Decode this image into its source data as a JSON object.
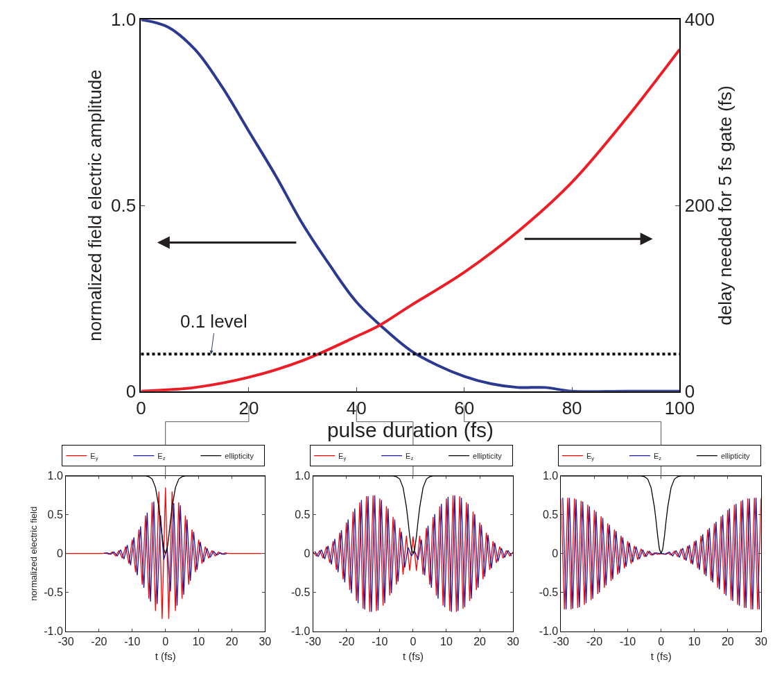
{
  "chart_data": [
    {
      "type": "line",
      "xlabel": "pulse duration (fs)",
      "ylabel": "normalized field electric amplitude",
      "y2label": "delay needed for 5 fs gate (fs)",
      "xlim": [
        0,
        100
      ],
      "xticks": [
        0,
        20,
        40,
        60,
        80,
        100
      ],
      "ylim": [
        0,
        1
      ],
      "yticks": [
        0,
        {
          "value": 0.5,
          "label": "0.5"
        },
        {
          "value": 1,
          "label": "1.0"
        }
      ],
      "y2lim": [
        0,
        400
      ],
      "y2ticks": [
        0,
        200,
        400
      ],
      "legend": false,
      "ref_lines": [
        {
          "axis": "y",
          "value": 0.1,
          "label": "0.1 level",
          "color": "#000000",
          "line_style": "dotted"
        }
      ],
      "series": [
        {
          "color": "#2b3990",
          "x": [
            0,
            5,
            10,
            15,
            20,
            25,
            30,
            35,
            40,
            45,
            50,
            55,
            60,
            65,
            70,
            75,
            80,
            90,
            100
          ],
          "values": [
            1,
            0.98,
            0.92,
            0.82,
            0.7,
            0.58,
            0.45,
            0.34,
            0.24,
            0.17,
            0.11,
            0.07,
            0.04,
            0.02,
            0.01,
            0.01,
            0,
            0,
            0
          ]
        },
        {
          "color": "#ee1c25",
          "axis": "y2",
          "x": [
            0,
            10,
            20,
            30,
            40,
            44,
            50,
            60,
            70,
            80,
            90,
            100
          ],
          "values": [
            0,
            4,
            15,
            33,
            59,
            70,
            92,
            128,
            172,
            225,
            293,
            368
          ]
        }
      ]
    },
    {
      "type": "line",
      "xlabel": "t (fs)",
      "ylabel": "normalized electric field",
      "xlim": [
        -30,
        30
      ],
      "xticks": [
        -30,
        -20,
        -10,
        0,
        10,
        20,
        30
      ],
      "ylim": [
        -1,
        1
      ],
      "yticks": [
        {
          "value": -1,
          "label": "-1.0"
        },
        -0.5,
        0,
        0.5,
        {
          "value": 1,
          "label": "1.0"
        }
      ],
      "legend": "top right",
      "series": [
        {
          "name": "E$_{y}$",
          "color": "#ff0000",
          "x": [
            -30,
            -29,
            -28,
            -27,
            -26,
            -25,
            -24,
            -23,
            -22,
            -21,
            -20,
            -19,
            -18,
            -17,
            -16,
            -15,
            -14,
            -13,
            -12,
            -11,
            -10,
            -9,
            -8,
            -7,
            -6,
            -5,
            -4,
            -3,
            -2,
            -1,
            0,
            1,
            2,
            3,
            4,
            5,
            6,
            7,
            8,
            9,
            10,
            11,
            12,
            13,
            14,
            15,
            16,
            17,
            18,
            19,
            20,
            21,
            22,
            23,
            24,
            25,
            26,
            27,
            28,
            29
          ],
          "values": [
            0,
            0,
            0,
            0,
            0,
            0,
            0,
            0,
            0,
            0,
            0,
            0,
            0.01,
            -0.01,
            0.02,
            -0.03,
            0.04,
            -0.06,
            0.09,
            -0.13,
            0.18,
            -0.24,
            0.31,
            -0.4,
            0.49,
            -0.58,
            0.66,
            -0.74,
            0.8,
            -0.84,
            0.85,
            -0.84,
            0.8,
            -0.74,
            0.66,
            -0.58,
            0.49,
            -0.4,
            0.31,
            -0.24,
            0.18,
            -0.13,
            0.09,
            -0.06,
            0.04,
            -0.03,
            0.02,
            -0.01,
            0.01,
            0,
            0,
            0,
            0,
            0,
            0,
            0,
            0,
            0,
            0,
            0
          ]
        },
        {
          "name": "E$_{z}$",
          "color": "#1c1c9c",
          "x": [
            -18.5,
            -17.5,
            -16.5,
            -15.5,
            -14.5,
            -13.5,
            -12.5,
            -11.5,
            -10.5,
            -9.5,
            -8.5,
            -7.5,
            -6.5,
            -5.5,
            -4.5,
            -3.5,
            -2.5,
            -1.5,
            -0.5,
            0.5,
            1.5,
            2.5,
            3.5,
            4.5,
            5.5,
            6.5,
            7.5,
            8.5,
            9.5,
            10.5,
            11.5,
            12.5,
            13.5,
            14.5,
            15.5,
            16.5,
            17.5,
            18.5
          ],
          "values": [
            0,
            0.01,
            -0.01,
            0.02,
            -0.03,
            0.05,
            -0.07,
            0.11,
            -0.15,
            0.21,
            -0.28,
            0.35,
            -0.44,
            0.53,
            -0.62,
            0.67,
            -0.65,
            0.49,
            -0.08,
            0.08,
            -0.49,
            0.65,
            -0.67,
            0.62,
            -0.53,
            0.44,
            -0.35,
            0.28,
            -0.21,
            0.15,
            -0.11,
            0.07,
            -0.05,
            0.03,
            -0.02,
            0.01,
            -0.01,
            0
          ]
        },
        {
          "name": "ellipticity",
          "color": "#000000",
          "x": [
            -30,
            -6,
            -5,
            -4,
            -3,
            -2,
            -1.5,
            -1,
            -0.5,
            0,
            0.5,
            1,
            1.5,
            2,
            3,
            4,
            5,
            6,
            30
          ],
          "values": [
            1,
            1,
            0.99,
            0.96,
            0.85,
            0.6,
            0.42,
            0.22,
            0.06,
            0,
            0.06,
            0.22,
            0.42,
            0.6,
            0.85,
            0.96,
            0.99,
            1,
            1
          ]
        }
      ]
    },
    {
      "type": "line",
      "xlabel": "t (fs)",
      "xlim": [
        -30,
        30
      ],
      "xticks": [
        -30,
        -20,
        -10,
        0,
        10,
        20,
        30
      ],
      "ylim": [
        -1,
        1
      ],
      "yticks": [
        {
          "value": -1,
          "label": "-1.0"
        },
        -0.5,
        0,
        0.5,
        {
          "value": 1,
          "label": "1.0"
        }
      ],
      "legend": "top right",
      "series": [
        {
          "name": "E$_{y}$",
          "color": "#ff0000",
          "x": [
            -30,
            -29,
            -28,
            -27,
            -26,
            -25,
            -24,
            -23,
            -22,
            -21,
            -20,
            -19,
            -18,
            -17,
            -16,
            -15,
            -14,
            -13,
            -12,
            -11,
            -10,
            -9,
            -8,
            -7,
            -6,
            -5,
            -4,
            -3,
            -2,
            -1,
            0,
            1,
            2,
            3,
            4,
            5,
            6,
            7,
            8,
            9,
            10,
            11,
            12,
            13,
            14,
            15,
            16,
            17,
            18,
            19,
            20,
            21,
            22,
            23,
            24,
            25,
            26,
            27,
            28,
            29,
            30
          ],
          "values": [
            0.02,
            -0.03,
            0.04,
            -0.06,
            0.09,
            -0.12,
            0.16,
            -0.21,
            0.27,
            -0.33,
            0.4,
            -0.47,
            0.54,
            -0.61,
            0.66,
            -0.71,
            0.74,
            -0.75,
            0.75,
            -0.74,
            0.71,
            -0.67,
            0.61,
            -0.54,
            0.47,
            -0.4,
            0.33,
            -0.27,
            0.23,
            -0.22,
            0.22,
            -0.22,
            0.23,
            -0.27,
            0.33,
            -0.4,
            0.47,
            -0.54,
            0.61,
            -0.67,
            0.71,
            -0.74,
            0.75,
            -0.75,
            0.74,
            -0.71,
            0.66,
            -0.61,
            0.54,
            -0.47,
            0.4,
            -0.33,
            0.27,
            -0.21,
            0.16,
            -0.12,
            0.09,
            -0.06,
            0.04,
            -0.03,
            0.02
          ]
        },
        {
          "name": "E$_{z}$",
          "color": "#1c1c9c",
          "x": [
            -29.5,
            -28.5,
            -27.5,
            -26.5,
            -25.5,
            -24.5,
            -23.5,
            -22.5,
            -21.5,
            -20.5,
            -19.5,
            -18.5,
            -17.5,
            -16.5,
            -15.5,
            -14.5,
            -13.5,
            -12.5,
            -11.5,
            -10.5,
            -9.5,
            -8.5,
            -7.5,
            -6.5,
            -5.5,
            -4.5,
            -3.5,
            -2.5,
            -1.5,
            -0.5,
            0.5,
            1.5,
            2.5,
            3.5,
            4.5,
            5.5,
            6.5,
            7.5,
            8.5,
            9.5,
            10.5,
            11.5,
            12.5,
            13.5,
            14.5,
            15.5,
            16.5,
            17.5,
            18.5,
            19.5,
            20.5,
            21.5,
            22.5,
            23.5,
            24.5,
            25.5,
            26.5,
            27.5,
            28.5,
            29.5
          ],
          "values": [
            0.03,
            -0.04,
            0.05,
            -0.07,
            0.1,
            -0.14,
            0.19,
            -0.24,
            0.3,
            -0.37,
            0.44,
            -0.51,
            0.58,
            -0.64,
            0.69,
            -0.72,
            0.74,
            -0.75,
            0.75,
            -0.73,
            0.69,
            -0.64,
            0.58,
            -0.51,
            0.44,
            -0.36,
            0.28,
            -0.18,
            0.08,
            -0.03,
            0.03,
            -0.08,
            0.18,
            -0.28,
            0.36,
            -0.44,
            0.51,
            -0.58,
            0.64,
            -0.69,
            0.73,
            -0.75,
            0.75,
            -0.74,
            0.72,
            -0.69,
            0.64,
            -0.58,
            0.51,
            -0.44,
            0.37,
            -0.3,
            0.24,
            -0.19,
            0.14,
            -0.1,
            0.07,
            -0.05,
            0.04,
            -0.03
          ]
        },
        {
          "name": "ellipticity",
          "color": "#000000",
          "x": [
            -30,
            -6,
            -5,
            -4,
            -3,
            -2,
            -1.5,
            -1,
            -0.5,
            0,
            0.5,
            1,
            1.5,
            2,
            3,
            4,
            5,
            6,
            30
          ],
          "values": [
            1,
            1,
            0.99,
            0.96,
            0.85,
            0.6,
            0.42,
            0.22,
            0.06,
            0,
            0.06,
            0.22,
            0.42,
            0.6,
            0.85,
            0.96,
            0.99,
            1,
            1
          ]
        }
      ]
    },
    {
      "type": "line",
      "xlabel": "t (fs)",
      "xlim": [
        -30,
        30
      ],
      "xticks": [
        -30,
        -20,
        -10,
        0,
        10,
        20,
        30
      ],
      "ylim": [
        -1,
        1
      ],
      "yticks": [
        {
          "value": -1,
          "label": "-1.0"
        },
        -0.5,
        0,
        0.5,
        {
          "value": 1,
          "label": "1.0"
        }
      ],
      "legend": "top right",
      "series": [
        {
          "name": "E$_{y}$",
          "color": "#ff0000",
          "x": [
            -30,
            -29,
            -28,
            -27,
            -26,
            -25,
            -24,
            -23,
            -22,
            -21,
            -20,
            -19,
            -18,
            -17,
            -16,
            -15,
            -14,
            -13,
            -12,
            -11,
            -10,
            -9,
            -8,
            -7,
            -6,
            -5,
            -4,
            -3,
            -2,
            -1,
            0,
            1,
            2,
            3,
            4,
            5,
            6,
            7,
            8,
            9,
            10,
            11,
            12,
            13,
            14,
            15,
            16,
            17,
            18,
            19,
            20,
            21,
            22,
            23,
            24,
            25,
            26,
            27,
            28,
            29,
            30
          ],
          "values": [
            0.71,
            -0.72,
            0.72,
            -0.72,
            0.71,
            -0.7,
            0.68,
            -0.66,
            0.63,
            -0.6,
            0.56,
            -0.52,
            0.48,
            -0.44,
            0.39,
            -0.35,
            0.31,
            -0.27,
            0.23,
            -0.19,
            0.16,
            -0.13,
            0.1,
            -0.08,
            0.06,
            -0.04,
            0.03,
            -0.02,
            0.01,
            -0.01,
            0,
            -0.01,
            0.01,
            -0.02,
            0.03,
            -0.04,
            0.06,
            -0.08,
            0.1,
            -0.13,
            0.16,
            -0.19,
            0.23,
            -0.27,
            0.31,
            -0.35,
            0.39,
            -0.44,
            0.48,
            -0.52,
            0.56,
            -0.6,
            0.63,
            -0.66,
            0.68,
            -0.7,
            0.71,
            -0.72,
            0.72,
            -0.72,
            0.71
          ]
        },
        {
          "name": "E$_{z}$",
          "color": "#1c1c9c",
          "x": [
            -29.5,
            -28.5,
            -27.5,
            -26.5,
            -25.5,
            -24.5,
            -23.5,
            -22.5,
            -21.5,
            -20.5,
            -19.5,
            -18.5,
            -17.5,
            -16.5,
            -15.5,
            -14.5,
            -13.5,
            -12.5,
            -11.5,
            -10.5,
            -9.5,
            -8.5,
            -7.5,
            -6.5,
            -5.5,
            -4.5,
            -3.5,
            -2.5,
            -1.5,
            -0.5,
            0.5,
            1.5,
            2.5,
            3.5,
            4.5,
            5.5,
            6.5,
            7.5,
            8.5,
            9.5,
            10.5,
            11.5,
            12.5,
            13.5,
            14.5,
            15.5,
            16.5,
            17.5,
            18.5,
            19.5,
            20.5,
            21.5,
            22.5,
            23.5,
            24.5,
            25.5,
            26.5,
            27.5,
            28.5,
            29.5
          ],
          "values": [
            0.72,
            -0.72,
            0.72,
            -0.71,
            0.7,
            -0.69,
            0.67,
            -0.64,
            0.61,
            -0.58,
            0.54,
            -0.5,
            0.46,
            -0.41,
            0.37,
            -0.33,
            0.29,
            -0.25,
            0.21,
            -0.17,
            0.14,
            -0.11,
            0.09,
            -0.07,
            0.05,
            -0.04,
            0.03,
            -0.02,
            0.01,
            0,
            0,
            -0.01,
            0.02,
            -0.03,
            0.04,
            -0.05,
            0.07,
            -0.09,
            0.11,
            -0.14,
            0.17,
            -0.21,
            0.25,
            -0.29,
            0.33,
            -0.37,
            0.41,
            -0.46,
            0.5,
            -0.54,
            0.58,
            -0.61,
            0.64,
            -0.67,
            0.69,
            -0.7,
            0.71,
            -0.72,
            0.72,
            -0.72
          ]
        },
        {
          "name": "ellipticity",
          "color": "#000000",
          "x": [
            -30,
            -6,
            -5,
            -4,
            -3,
            -2,
            -1.5,
            -1,
            -0.5,
            0,
            0.5,
            1,
            1.5,
            2,
            3,
            4,
            5,
            6,
            30
          ],
          "values": [
            1,
            1,
            0.99,
            0.96,
            0.85,
            0.6,
            0.42,
            0.22,
            0.06,
            0,
            0.06,
            0.22,
            0.42,
            0.6,
            0.85,
            0.96,
            0.99,
            1,
            1
          ]
        }
      ]
    }
  ]
}
